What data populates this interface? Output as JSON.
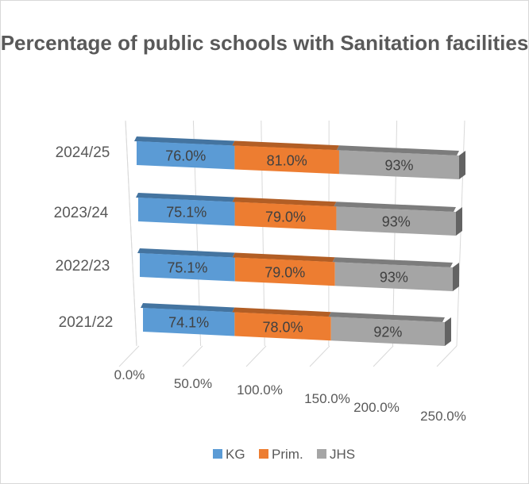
{
  "chart_data": {
    "type": "bar",
    "orientation": "horizontal",
    "stacked": true,
    "three_d": true,
    "title": "Percentage of public schools with Sanitation facilities",
    "categories": [
      "2021/22",
      "2022/23",
      "2023/24",
      "2024/25"
    ],
    "series": [
      {
        "name": "KG",
        "values": [
          74.1,
          75.1,
          75.1,
          76.0
        ],
        "labels": [
          "74.1%",
          "75.1%",
          "75.1%",
          "76.0%"
        ],
        "color": "#5B9BD5"
      },
      {
        "name": "Prim.",
        "values": [
          78.0,
          79.0,
          79.0,
          81.0
        ],
        "labels": [
          "78.0%",
          "79.0%",
          "79.0%",
          "81.0%"
        ],
        "color": "#ED7D31"
      },
      {
        "name": "JHS",
        "values": [
          92,
          93,
          93,
          93
        ],
        "labels": [
          "92%",
          "93%",
          "93%",
          "93%"
        ],
        "color": "#A5A5A5"
      }
    ],
    "x_ticks": [
      "0.0%",
      "50.0%",
      "100.0%",
      "150.0%",
      "200.0%",
      "250.0%"
    ],
    "xlim": [
      0,
      250
    ],
    "grid": true,
    "legend_position": "bottom"
  }
}
